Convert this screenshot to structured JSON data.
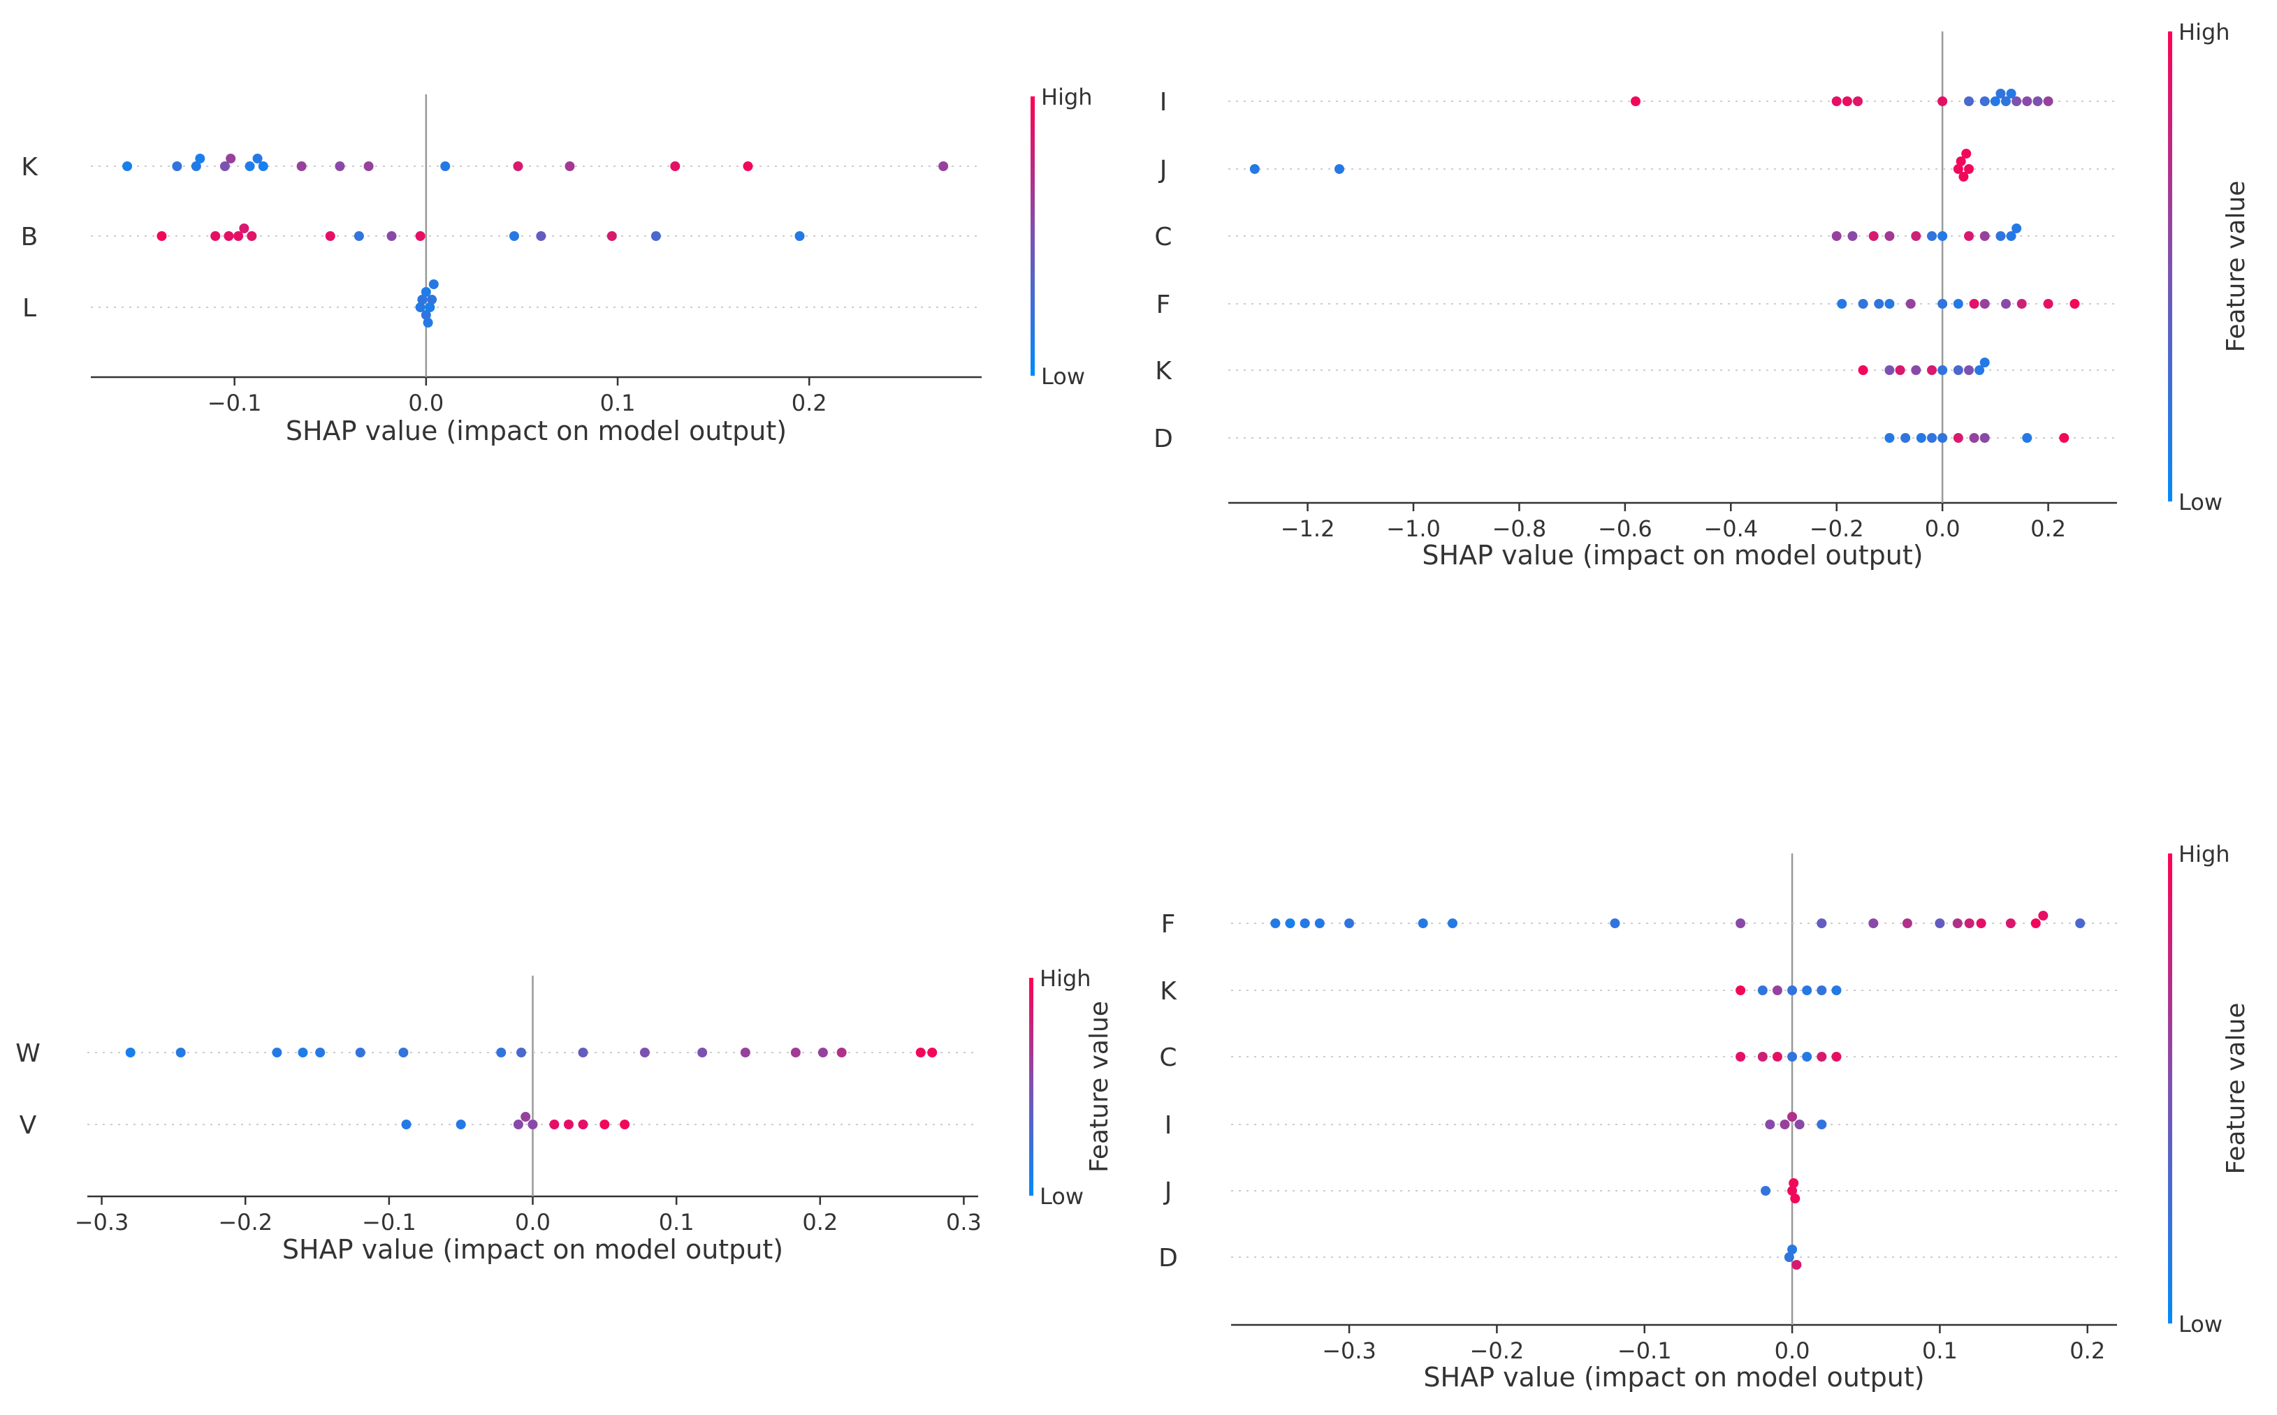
{
  "chart_data": [
    {
      "type": "scatter",
      "title": "",
      "xlabel": "SHAP value (impact on model output)",
      "xlim": [
        -0.175,
        0.29
      ],
      "xticks": [
        -0.1,
        0.0,
        0.1,
        0.2
      ],
      "xtick_labels": [
        "−0.1",
        "0.0",
        "0.1",
        "0.2"
      ],
      "features": [
        "K",
        "B",
        "L"
      ],
      "colorbar": {
        "label": "",
        "high": "High",
        "low": "Low"
      },
      "points": {
        "K": [
          [
            -0.156,
            0.1
          ],
          [
            -0.13,
            0.2
          ],
          [
            -0.12,
            0.15
          ],
          [
            -0.118,
            0.1
          ],
          [
            -0.105,
            0.5
          ],
          [
            -0.102,
            0.6
          ],
          [
            -0.092,
            0.12
          ],
          [
            -0.088,
            0.15
          ],
          [
            -0.085,
            0.1
          ],
          [
            -0.065,
            0.6
          ],
          [
            -0.045,
            0.55
          ],
          [
            -0.03,
            0.6
          ],
          [
            0.01,
            0.15
          ],
          [
            0.048,
            0.85
          ],
          [
            0.075,
            0.65
          ],
          [
            0.13,
            0.9
          ],
          [
            0.168,
            0.95
          ],
          [
            0.27,
            0.6
          ]
        ],
        "B": [
          [
            -0.138,
            0.95
          ],
          [
            -0.11,
            0.9
          ],
          [
            -0.103,
            0.9
          ],
          [
            -0.098,
            0.9
          ],
          [
            -0.095,
            0.85
          ],
          [
            -0.091,
            0.88
          ],
          [
            -0.05,
            0.9
          ],
          [
            -0.035,
            0.2
          ],
          [
            -0.018,
            0.55
          ],
          [
            -0.003,
            0.9
          ],
          [
            0.046,
            0.15
          ],
          [
            0.06,
            0.4
          ],
          [
            0.097,
            0.85
          ],
          [
            0.12,
            0.3
          ],
          [
            0.195,
            0.15
          ]
        ],
        "L": [
          [
            -0.003,
            0.15
          ],
          [
            -0.002,
            0.18
          ],
          [
            0.0,
            0.2
          ],
          [
            0.0,
            0.12
          ],
          [
            0.001,
            0.15
          ],
          [
            0.002,
            0.1
          ],
          [
            0.003,
            0.2
          ],
          [
            0.004,
            0.15
          ]
        ]
      }
    },
    {
      "type": "scatter",
      "title": "",
      "xlabel": "SHAP value (impact on model output)",
      "xlim": [
        -1.35,
        0.33
      ],
      "xticks": [
        -1.2,
        -1.0,
        -0.8,
        -0.6,
        -0.4,
        -0.2,
        0.0,
        0.2
      ],
      "xtick_labels": [
        "−1.2",
        "−1.0",
        "−0.8",
        "−0.6",
        "−0.4",
        "−0.2",
        "0.0",
        "0.2"
      ],
      "features": [
        "I",
        "J",
        "C",
        "F",
        "K",
        "D"
      ],
      "colorbar": {
        "label": "Feature value",
        "high": "High",
        "low": "Low"
      },
      "points": {
        "I": [
          [
            -0.58,
            0.95
          ],
          [
            -0.2,
            0.9
          ],
          [
            -0.18,
            0.92
          ],
          [
            -0.16,
            0.88
          ],
          [
            0.0,
            0.9
          ],
          [
            0.05,
            0.3
          ],
          [
            0.08,
            0.25
          ],
          [
            0.1,
            0.15
          ],
          [
            0.11,
            0.2
          ],
          [
            0.12,
            0.2
          ],
          [
            0.13,
            0.15
          ],
          [
            0.14,
            0.5
          ],
          [
            0.16,
            0.55
          ],
          [
            0.18,
            0.5
          ],
          [
            0.2,
            0.6
          ]
        ],
        "J": [
          [
            -1.3,
            0.15
          ],
          [
            -1.14,
            0.15
          ],
          [
            0.03,
            0.95
          ],
          [
            0.035,
            0.95
          ],
          [
            0.04,
            0.95
          ],
          [
            0.045,
            0.95
          ],
          [
            0.05,
            0.95
          ]
        ],
        "C": [
          [
            -0.2,
            0.6
          ],
          [
            -0.17,
            0.55
          ],
          [
            -0.13,
            0.85
          ],
          [
            -0.1,
            0.65
          ],
          [
            -0.05,
            0.8
          ],
          [
            -0.02,
            0.2
          ],
          [
            0.0,
            0.15
          ],
          [
            0.05,
            0.85
          ],
          [
            0.08,
            0.6
          ],
          [
            0.11,
            0.2
          ],
          [
            0.13,
            0.15
          ],
          [
            0.14,
            0.15
          ]
        ],
        "F": [
          [
            -0.19,
            0.15
          ],
          [
            -0.15,
            0.2
          ],
          [
            -0.12,
            0.2
          ],
          [
            -0.1,
            0.15
          ],
          [
            -0.06,
            0.6
          ],
          [
            0.0,
            0.2
          ],
          [
            0.03,
            0.15
          ],
          [
            0.06,
            0.9
          ],
          [
            0.08,
            0.6
          ],
          [
            0.12,
            0.55
          ],
          [
            0.15,
            0.8
          ],
          [
            0.2,
            0.9
          ],
          [
            0.25,
            0.95
          ]
        ],
        "K": [
          [
            -0.15,
            0.95
          ],
          [
            -0.1,
            0.5
          ],
          [
            -0.08,
            0.85
          ],
          [
            -0.05,
            0.55
          ],
          [
            -0.02,
            0.85
          ],
          [
            0.0,
            0.2
          ],
          [
            0.03,
            0.3
          ],
          [
            0.05,
            0.5
          ],
          [
            0.07,
            0.15
          ],
          [
            0.08,
            0.15
          ]
        ],
        "D": [
          [
            -0.1,
            0.15
          ],
          [
            -0.07,
            0.2
          ],
          [
            -0.04,
            0.15
          ],
          [
            -0.02,
            0.2
          ],
          [
            0.0,
            0.2
          ],
          [
            0.03,
            0.85
          ],
          [
            0.06,
            0.6
          ],
          [
            0.08,
            0.55
          ],
          [
            0.16,
            0.15
          ],
          [
            0.23,
            0.95
          ]
        ]
      }
    },
    {
      "type": "scatter",
      "title": "",
      "xlabel": "SHAP value (impact on model output)",
      "xlim": [
        -0.31,
        0.31
      ],
      "xticks": [
        -0.3,
        -0.2,
        -0.1,
        0.0,
        0.1,
        0.2,
        0.3
      ],
      "xtick_labels": [
        "−0.3",
        "−0.2",
        "−0.1",
        "0.0",
        "0.1",
        "0.2",
        "0.3"
      ],
      "features": [
        "W",
        "V"
      ],
      "colorbar": {
        "label": "Feature value",
        "high": "High",
        "low": "Low"
      },
      "points": {
        "W": [
          [
            -0.28,
            0.1
          ],
          [
            -0.245,
            0.15
          ],
          [
            -0.178,
            0.15
          ],
          [
            -0.16,
            0.12
          ],
          [
            -0.148,
            0.15
          ],
          [
            -0.12,
            0.2
          ],
          [
            -0.09,
            0.2
          ],
          [
            -0.022,
            0.2
          ],
          [
            -0.008,
            0.3
          ],
          [
            0.035,
            0.4
          ],
          [
            0.078,
            0.5
          ],
          [
            0.118,
            0.5
          ],
          [
            0.148,
            0.6
          ],
          [
            0.183,
            0.65
          ],
          [
            0.202,
            0.6
          ],
          [
            0.215,
            0.7
          ],
          [
            0.27,
            0.95
          ],
          [
            0.278,
            0.95
          ]
        ],
        "V": [
          [
            -0.088,
            0.15
          ],
          [
            -0.05,
            0.15
          ],
          [
            -0.01,
            0.55
          ],
          [
            -0.005,
            0.6
          ],
          [
            0.0,
            0.55
          ],
          [
            0.015,
            0.9
          ],
          [
            0.025,
            0.9
          ],
          [
            0.035,
            0.9
          ],
          [
            0.05,
            0.95
          ],
          [
            0.064,
            0.95
          ]
        ]
      }
    },
    {
      "type": "scatter",
      "title": "",
      "xlabel": "SHAP value (impact on model output)",
      "xlim": [
        -0.38,
        0.22
      ],
      "xticks": [
        -0.3,
        -0.2,
        -0.1,
        0.0,
        0.1,
        0.2
      ],
      "xtick_labels": [
        "−0.3",
        "−0.2",
        "−0.1",
        "0.0",
        "0.1",
        "0.2"
      ],
      "features": [
        "F",
        "K",
        "C",
        "I",
        "J",
        "D"
      ],
      "colorbar": {
        "label": "Feature value",
        "high": "High",
        "low": "Low"
      },
      "points": {
        "F": [
          [
            -0.35,
            0.15
          ],
          [
            -0.34,
            0.1
          ],
          [
            -0.33,
            0.15
          ],
          [
            -0.32,
            0.15
          ],
          [
            -0.3,
            0.2
          ],
          [
            -0.25,
            0.15
          ],
          [
            -0.23,
            0.15
          ],
          [
            -0.12,
            0.2
          ],
          [
            -0.035,
            0.55
          ],
          [
            0.02,
            0.4
          ],
          [
            0.055,
            0.55
          ],
          [
            0.078,
            0.7
          ],
          [
            0.1,
            0.4
          ],
          [
            0.112,
            0.7
          ],
          [
            0.12,
            0.8
          ],
          [
            0.128,
            0.9
          ],
          [
            0.148,
            0.85
          ],
          [
            0.165,
            0.95
          ],
          [
            0.17,
            0.9
          ],
          [
            0.195,
            0.3
          ]
        ],
        "K": [
          [
            -0.035,
            0.95
          ],
          [
            -0.02,
            0.2
          ],
          [
            -0.01,
            0.6
          ],
          [
            0.0,
            0.2
          ],
          [
            0.01,
            0.15
          ],
          [
            0.02,
            0.2
          ],
          [
            0.03,
            0.15
          ]
        ],
        "C": [
          [
            -0.035,
            0.9
          ],
          [
            -0.02,
            0.8
          ],
          [
            -0.01,
            0.9
          ],
          [
            0.0,
            0.2
          ],
          [
            0.01,
            0.15
          ],
          [
            0.02,
            0.85
          ],
          [
            0.03,
            0.9
          ]
        ],
        "I": [
          [
            -0.015,
            0.55
          ],
          [
            -0.005,
            0.6
          ],
          [
            0.0,
            0.7
          ],
          [
            0.005,
            0.55
          ],
          [
            0.02,
            0.2
          ]
        ],
        "J": [
          [
            -0.018,
            0.2
          ],
          [
            0.0,
            0.95
          ],
          [
            0.001,
            0.95
          ],
          [
            0.002,
            0.95
          ]
        ],
        "D": [
          [
            -0.002,
            0.2
          ],
          [
            0.0,
            0.15
          ],
          [
            0.003,
            0.85
          ]
        ]
      }
    }
  ]
}
